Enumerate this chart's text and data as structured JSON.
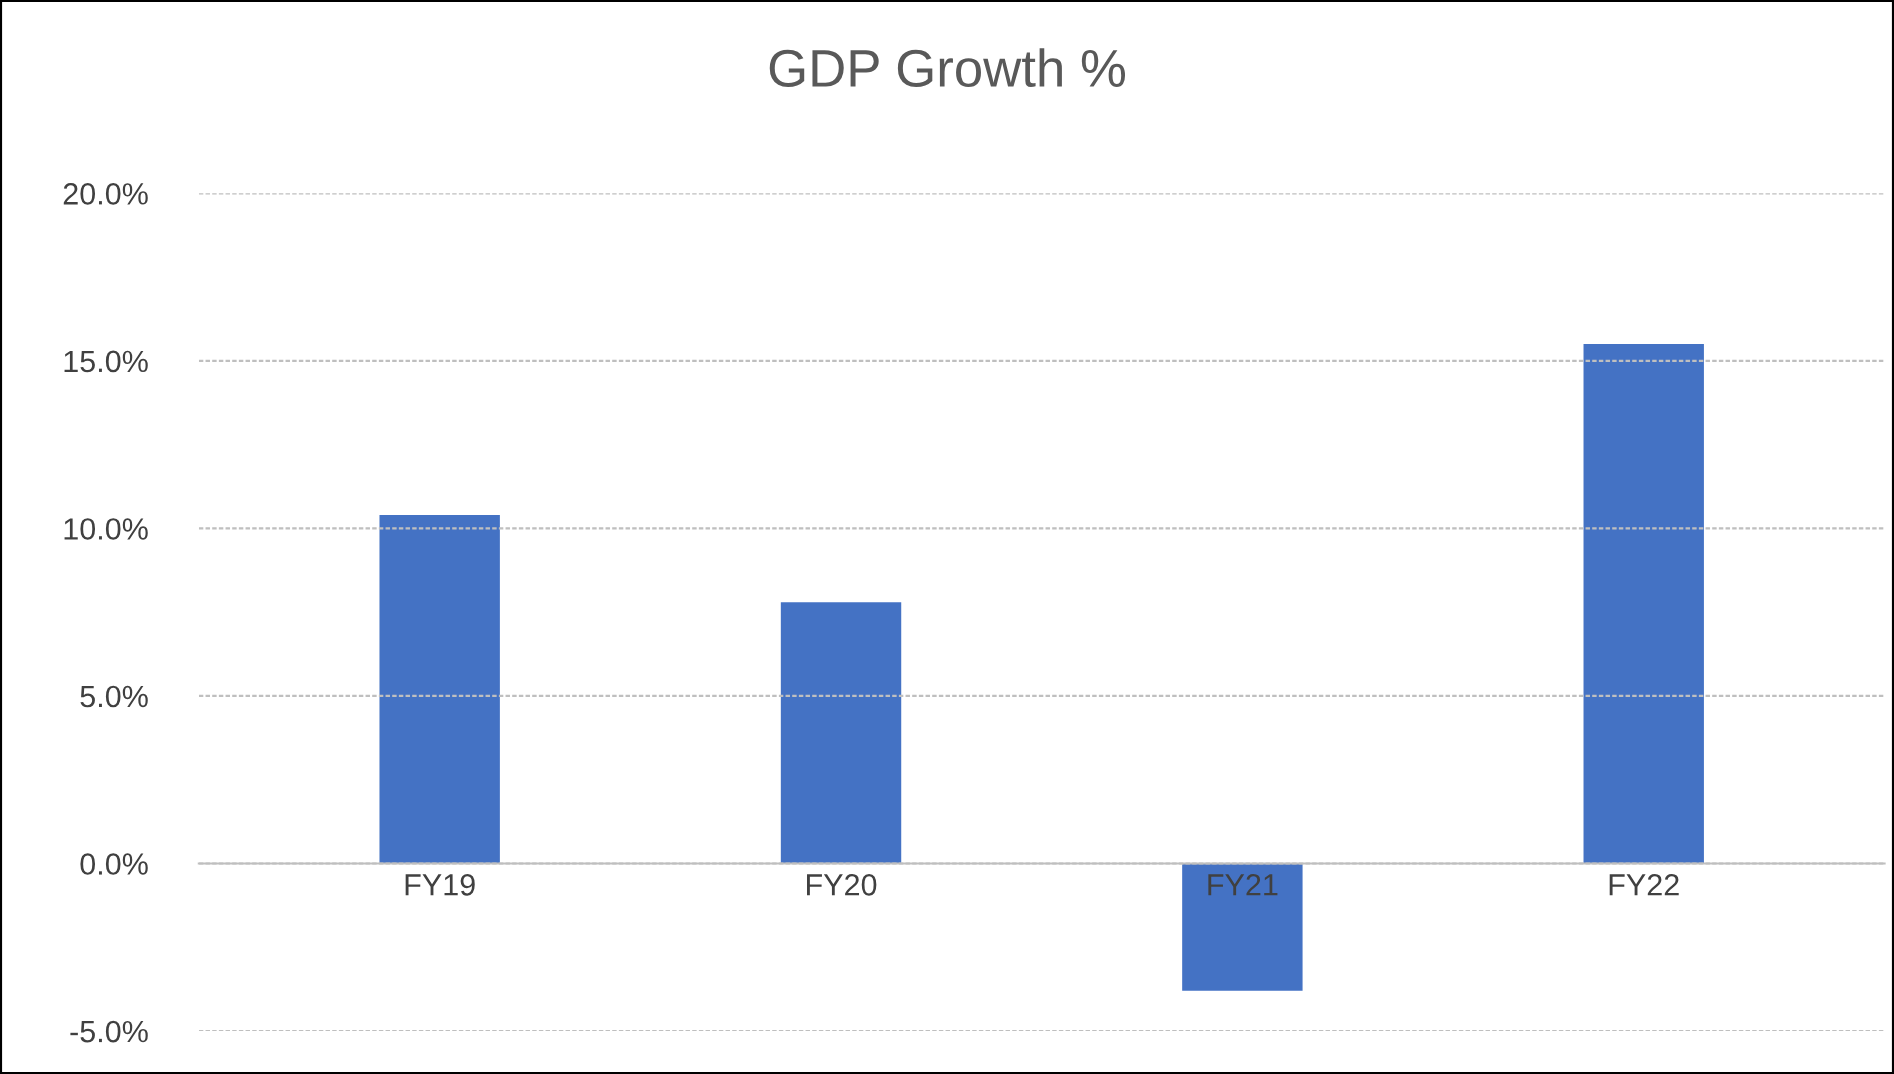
{
  "chart_data": {
    "type": "bar",
    "title": "GDP Growth %",
    "categories": [
      "FY19",
      "FY20",
      "FY21",
      "FY22"
    ],
    "values": [
      10.4,
      7.8,
      -3.8,
      15.5
    ],
    "color": "#4472c4",
    "ylim": [
      -5,
      20
    ],
    "yticks": [
      {
        "value": -5,
        "label": "-5.0%"
      },
      {
        "value": 0,
        "label": "0.0%"
      },
      {
        "value": 5,
        "label": "5.0%"
      },
      {
        "value": 10,
        "label": "10.0%"
      },
      {
        "value": 15,
        "label": "15.0%"
      },
      {
        "value": 20,
        "label": "20.0%"
      }
    ],
    "grid": "y"
  }
}
